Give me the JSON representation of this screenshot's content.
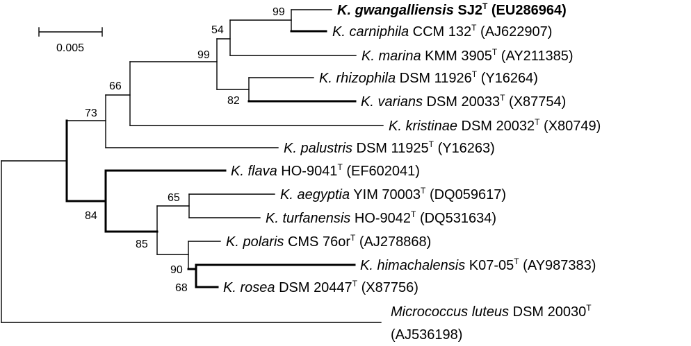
{
  "scale_bar": {
    "label": "0.005"
  },
  "taxa": [
    {
      "id": "gwangalliensis",
      "genus": "K.",
      "species": "gwangalliensis",
      "strain": "SJ2",
      "type_mark": "T",
      "accession": "(EU286964)",
      "bold": true
    },
    {
      "id": "carniphila",
      "genus": "K.",
      "species": "carniphila",
      "strain": "CCM 132",
      "type_mark": "T",
      "accession": "(AJ622907)"
    },
    {
      "id": "marina",
      "genus": "K.",
      "species": "marina",
      "strain": "KMM 3905",
      "type_mark": "T",
      "accession": "(AY211385)"
    },
    {
      "id": "rhizophila",
      "genus": "K.",
      "species": "rhizophila",
      "strain": "DSM 11926",
      "type_mark": "T",
      "accession": "(Y16264)"
    },
    {
      "id": "varians",
      "genus": "K.",
      "species": "varians",
      "strain": "DSM 20033",
      "type_mark": "T",
      "accession": "(X87754)"
    },
    {
      "id": "kristinae",
      "genus": "K.",
      "species": "kristinae",
      "strain": "DSM 20032",
      "type_mark": "T",
      "accession": "(X80749)"
    },
    {
      "id": "palustris",
      "genus": "K.",
      "species": "palustris",
      "strain": "DSM 11925",
      "type_mark": "T",
      "accession": "(Y16263)"
    },
    {
      "id": "flava",
      "genus": "K.",
      "species": "flava",
      "strain": "HO-9041",
      "type_mark": "T",
      "accession": "(EF602041)"
    },
    {
      "id": "aegyptia",
      "genus": "K.",
      "species": "aegyptia",
      "strain": "YIM 70003",
      "type_mark": "T",
      "accession": "(DQ059617)"
    },
    {
      "id": "turfanensis",
      "genus": "K.",
      "species": "turfanensis",
      "strain": "HO-9042",
      "type_mark": "T",
      "accession": "(DQ531634)"
    },
    {
      "id": "polaris",
      "genus": "K.",
      "species": "polaris",
      "strain": "CMS 76or",
      "type_mark": "T",
      "accession": "(AJ278868)"
    },
    {
      "id": "himachalensis",
      "genus": "K.",
      "species": "himachalensis",
      "strain": "K07-05",
      "type_mark": "T",
      "accession": "(AY987383)"
    },
    {
      "id": "rosea",
      "genus": "K.",
      "species": "rosea",
      "strain": "DSM 20447",
      "type_mark": "T",
      "accession": "(X87756)"
    },
    {
      "id": "luteus",
      "genus": "",
      "species": "Micrococcus luteus",
      "strain": "DSM 20030",
      "type_mark": "T",
      "accession": "(AJ536198)"
    }
  ],
  "bootstrap": {
    "n99_top": "99",
    "n54": "54",
    "n99_mid": "99",
    "n82": "82",
    "n66": "66",
    "n73": "73",
    "n65": "65",
    "n84": "84",
    "n85": "85",
    "n90": "90",
    "n68": "68"
  }
}
